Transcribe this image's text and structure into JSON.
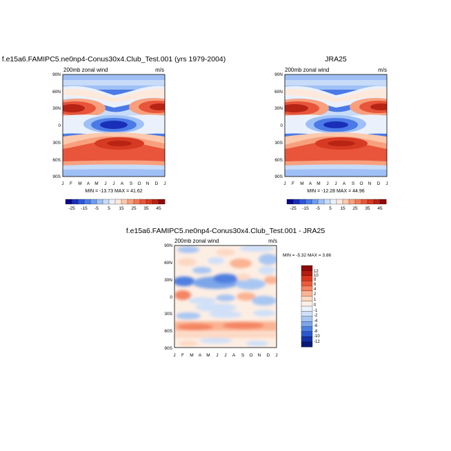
{
  "chart_data": [
    {
      "type": "heatmap",
      "title": "f.e15a6.FAMIPC5.ne0np4-Conus30x4.Club_Test.001 (yrs 1979-2004)",
      "left_label": "200mb zonal wind",
      "right_label": "m/s",
      "stats": "MIN = -13.73 MAX =  41.62",
      "min": -13.73,
      "max": 41.62,
      "x_ticks": [
        "J",
        "F",
        "M",
        "A",
        "M",
        "J",
        "J",
        "A",
        "S",
        "O",
        "N",
        "D",
        "J"
      ],
      "y_ticks": [
        "90N",
        "60N",
        "30N",
        "0",
        "30S",
        "60S",
        "90S"
      ],
      "colorbar_labels": [
        "-25",
        "-15",
        "-5",
        "5",
        "15",
        "25",
        "35",
        "45"
      ]
    },
    {
      "type": "heatmap",
      "title": "JRA25",
      "left_label": "200mb zonal wind",
      "right_label": "m/s",
      "stats": "MIN = -12.28 MAX =  44.96",
      "min": -12.28,
      "max": 44.96,
      "x_ticks": [
        "J",
        "F",
        "M",
        "A",
        "M",
        "J",
        "J",
        "A",
        "S",
        "O",
        "N",
        "D",
        "J"
      ],
      "y_ticks": [
        "90N",
        "60N",
        "30N",
        "0",
        "30S",
        "60S",
        "90S"
      ],
      "colorbar_labels": [
        "-25",
        "-15",
        "-5",
        "5",
        "15",
        "25",
        "35",
        "45"
      ]
    },
    {
      "type": "heatmap",
      "title": "f.e15a6.FAMIPC5.ne0np4-Conus30x4.Club_Test.001 - JRA25",
      "left_label": "200mb zonal wind",
      "right_label": "m/s",
      "stats": "MIN =  -5.32 MAX =   3.86",
      "min": -5.32,
      "max": 3.86,
      "x_ticks": [
        "J",
        "F",
        "M",
        "A",
        "M",
        "J",
        "J",
        "A",
        "S",
        "O",
        "N",
        "D",
        "J"
      ],
      "y_ticks": [
        "90N",
        "60N",
        "30N",
        "0",
        "30S",
        "60S",
        "90S"
      ],
      "colorbar_labels": [
        "12",
        "10",
        "8",
        "6",
        "4",
        "2",
        "1",
        "0",
        "-1",
        "-2",
        "-4",
        "-6",
        "-8",
        "-10",
        "-12"
      ]
    }
  ],
  "colors": {
    "full_scale": [
      "#08088c",
      "#1a2fb8",
      "#2d56dc",
      "#4a7ae6",
      "#6f9cef",
      "#9fc0f6",
      "#c8dbf8",
      "#eaf1fc",
      "#fde9dc",
      "#fcc9ad",
      "#f8a07e",
      "#f27a58",
      "#e8553a",
      "#d63a22",
      "#b82414",
      "#8c0a08"
    ],
    "diff_scale": [
      "#8c0a08",
      "#b51c10",
      "#d9361d",
      "#eb5a3a",
      "#f48462",
      "#fab393",
      "#fcd8c2",
      "#fdeee4",
      "#eaf2fc",
      "#cfe0f8",
      "#a8c6f2",
      "#7da6ea",
      "#4f7fe0",
      "#2b59cc",
      "#1333a6",
      "#061b78"
    ]
  }
}
